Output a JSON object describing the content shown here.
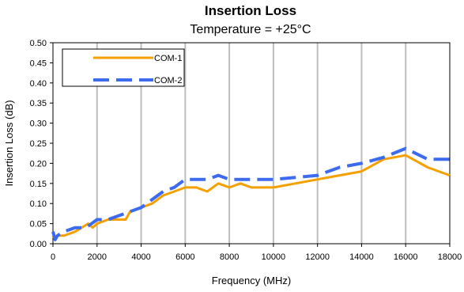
{
  "chart_data": {
    "type": "line",
    "title": "Insertion Loss",
    "subtitle": "Temperature = +25°C",
    "xlabel": "Frequency (MHz)",
    "ylabel": "Insertion Loss (dB)",
    "xlim": [
      0,
      18000
    ],
    "ylim": [
      0,
      0.5
    ],
    "xticks": [
      0,
      2000,
      4000,
      6000,
      8000,
      10000,
      12000,
      14000,
      16000,
      18000
    ],
    "xtick_labels": [
      "0",
      "2000",
      "4000",
      "6000",
      "8000",
      "10000",
      "12000",
      "14000",
      "16000",
      "18000"
    ],
    "yticks": [
      0,
      0.05,
      0.1,
      0.15,
      0.2,
      0.25,
      0.3,
      0.35,
      0.4,
      0.45,
      0.5
    ],
    "ytick_labels": [
      "0.00",
      "0.05",
      "0.10",
      "0.15",
      "0.20",
      "0.25",
      "0.30",
      "0.35",
      "0.40",
      "0.45",
      "0.50"
    ],
    "grid": "vertical",
    "legend": "top-left",
    "series": [
      {
        "name": "COM-1",
        "color": "#F5A000",
        "style": "solid",
        "x": [
          0,
          100,
          200,
          500,
          1000,
          1300,
          1600,
          1800,
          2000,
          2500,
          3000,
          3300,
          3500,
          4000,
          4500,
          5000,
          5500,
          6000,
          6500,
          7000,
          7500,
          8000,
          8500,
          9000,
          9500,
          10000,
          11000,
          12000,
          13000,
          14000,
          15000,
          16000,
          17000,
          18000
        ],
        "y": [
          0.02,
          0.01,
          0.02,
          0.02,
          0.03,
          0.04,
          0.05,
          0.04,
          0.05,
          0.06,
          0.06,
          0.06,
          0.08,
          0.09,
          0.1,
          0.12,
          0.13,
          0.14,
          0.14,
          0.13,
          0.15,
          0.14,
          0.15,
          0.14,
          0.14,
          0.14,
          0.15,
          0.16,
          0.17,
          0.18,
          0.21,
          0.22,
          0.19,
          0.17
        ]
      },
      {
        "name": "COM-2",
        "color": "#3C6BF0",
        "style": "dashed",
        "x": [
          0,
          100,
          200,
          500,
          1000,
          1500,
          2000,
          2500,
          3000,
          3500,
          4000,
          4500,
          5000,
          5500,
          6000,
          7000,
          7500,
          8000,
          9000,
          10000,
          11000,
          12000,
          13000,
          14000,
          15000,
          16000,
          17000,
          18000
        ],
        "y": [
          0.03,
          0.01,
          0.02,
          0.03,
          0.04,
          0.04,
          0.06,
          0.06,
          0.07,
          0.08,
          0.09,
          0.11,
          0.13,
          0.14,
          0.16,
          0.16,
          0.17,
          0.16,
          0.16,
          0.16,
          0.165,
          0.17,
          0.19,
          0.2,
          0.215,
          0.237,
          0.21,
          0.21
        ]
      }
    ]
  }
}
